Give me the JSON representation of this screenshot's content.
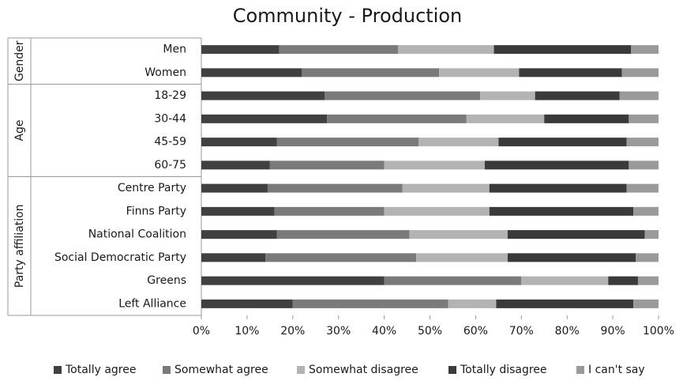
{
  "chart_data": {
    "type": "bar",
    "orientation": "horizontal",
    "stacked": true,
    "percent": true,
    "title": "Community - Production",
    "groups": [
      {
        "name": "Gender",
        "categories": [
          "Men",
          "Women"
        ]
      },
      {
        "name": "Age",
        "categories": [
          "18-29",
          "30-44",
          "45-59",
          "60-75"
        ]
      },
      {
        "name": "Party affiliation",
        "categories": [
          "Centre Party",
          "Finns Party",
          "National Coalition",
          "Social Democratic Party",
          "Greens",
          "Left Alliance"
        ]
      }
    ],
    "categories": [
      "Men",
      "Women",
      "18-29",
      "30-44",
      "45-59",
      "60-75",
      "Centre Party",
      "Finns Party",
      "National Coalition",
      "Social Democratic Party",
      "Greens",
      "Left Alliance"
    ],
    "series": [
      {
        "name": "Totally agree",
        "color": "#404040",
        "values": [
          17,
          22,
          27,
          27.5,
          16.5,
          15,
          14.5,
          16,
          16.5,
          14,
          40,
          20
        ]
      },
      {
        "name": "Somewhat agree",
        "color": "#7a7a7a",
        "values": [
          26,
          30,
          34,
          30.5,
          31,
          25,
          29.5,
          24,
          29,
          33,
          30,
          34
        ]
      },
      {
        "name": "Somewhat disagree",
        "color": "#b3b3b3",
        "values": [
          21,
          17.5,
          12,
          17,
          17.5,
          22,
          19,
          23,
          21.5,
          20,
          19,
          10.5
        ]
      },
      {
        "name": "Totally disagree",
        "color": "#3a3a3a",
        "values": [
          30,
          22.5,
          18.5,
          18.5,
          28,
          31.5,
          30,
          31.5,
          30,
          28,
          6.5,
          30
        ]
      },
      {
        "name": "I can't say",
        "color": "#9a9a9a",
        "values": [
          6,
          8,
          8.5,
          6.5,
          7,
          6.5,
          7,
          5.5,
          3,
          5,
          4.5,
          5.5
        ]
      }
    ],
    "xlim": [
      0,
      100
    ],
    "xticks": [
      "0%",
      "10%",
      "20%",
      "30%",
      "40%",
      "50%",
      "60%",
      "70%",
      "80%",
      "90%",
      "100%"
    ],
    "grid": false,
    "legend": "bottom"
  }
}
